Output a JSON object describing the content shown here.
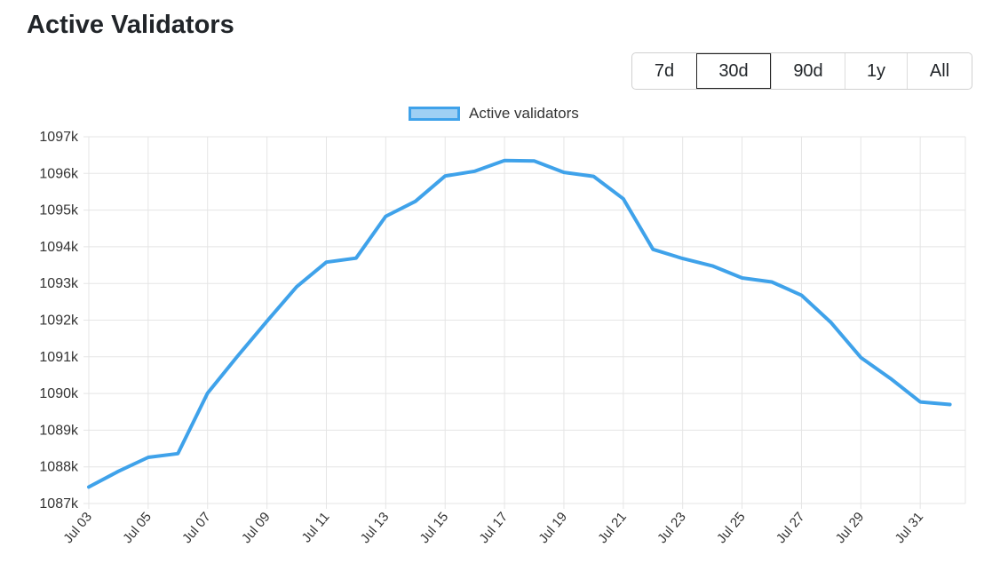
{
  "page": {
    "title": "Active Validators"
  },
  "range_buttons": [
    {
      "label": "7d"
    },
    {
      "label": "30d",
      "active": true
    },
    {
      "label": "90d"
    },
    {
      "label": "1y"
    },
    {
      "label": "All"
    }
  ],
  "colors": {
    "line": "#3fa2ea",
    "legend_fill": "#9fd0f4",
    "grid": "#e5e5e5"
  },
  "chart_data": {
    "type": "line",
    "legend": "Active validators",
    "legend_position": "top-center",
    "grid": true,
    "ylim": [
      1087000,
      1097000
    ],
    "y_ticks": [
      1087000,
      1088000,
      1089000,
      1090000,
      1091000,
      1092000,
      1093000,
      1094000,
      1095000,
      1096000,
      1097000
    ],
    "y_tick_labels": [
      "1087k",
      "1088k",
      "1089k",
      "1090k",
      "1091k",
      "1092k",
      "1093k",
      "1094k",
      "1095k",
      "1096k",
      "1097k"
    ],
    "x": [
      "Jul 03",
      "Jul 04",
      "Jul 05",
      "Jul 06",
      "Jul 07",
      "Jul 08",
      "Jul 09",
      "Jul 10",
      "Jul 11",
      "Jul 12",
      "Jul 13",
      "Jul 14",
      "Jul 15",
      "Jul 16",
      "Jul 17",
      "Jul 18",
      "Jul 19",
      "Jul 20",
      "Jul 21",
      "Jul 22",
      "Jul 23",
      "Jul 24",
      "Jul 25",
      "Jul 26",
      "Jul 27",
      "Jul 28",
      "Jul 29",
      "Jul 30",
      "Jul 31",
      "Aug 01"
    ],
    "x_tick_labels": [
      "Jul 03",
      "Jul 05",
      "Jul 07",
      "Jul 09",
      "Jul 11",
      "Jul 13",
      "Jul 15",
      "Jul 17",
      "Jul 19",
      "Jul 21",
      "Jul 23",
      "Jul 25",
      "Jul 27",
      "Jul 29",
      "Jul 31"
    ],
    "series": [
      {
        "name": "Active validators",
        "values": [
          1087450,
          1087880,
          1088260,
          1088360,
          1090010,
          1091010,
          1091970,
          1092910,
          1093580,
          1093690,
          1094830,
          1095240,
          1095930,
          1096060,
          1096350,
          1096340,
          1096030,
          1095920,
          1095310,
          1093930,
          1093680,
          1093480,
          1093150,
          1093040,
          1092680,
          1091930,
          1090980,
          1090410,
          1089770,
          1089700
        ]
      }
    ]
  }
}
